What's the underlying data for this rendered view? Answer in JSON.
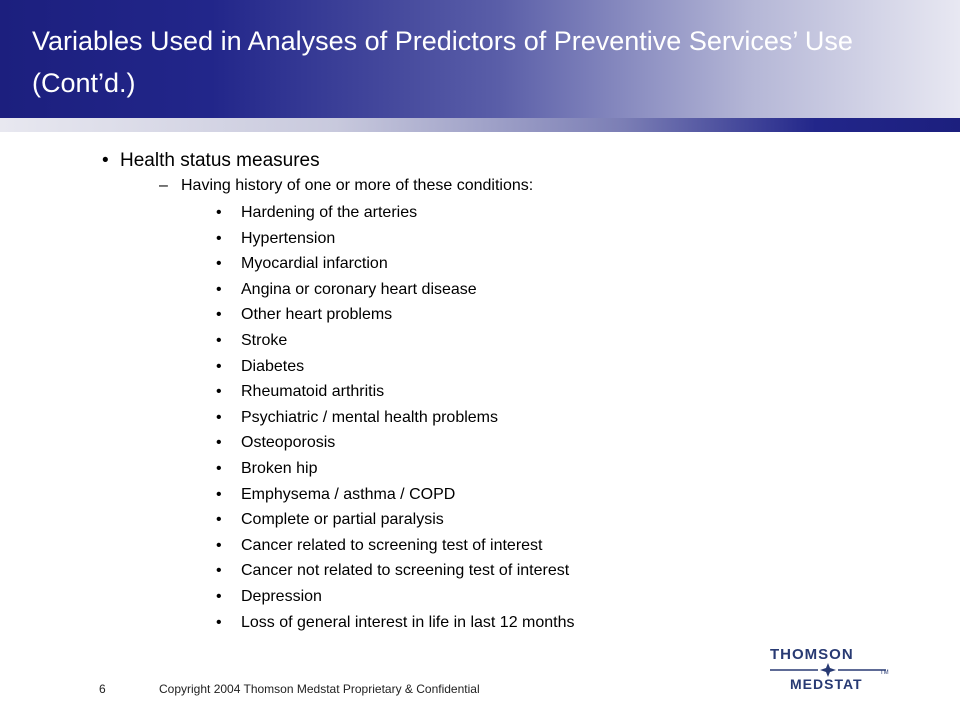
{
  "slide": {
    "title": "Variables Used in Analyses of Predictors of Preventive Services’ Use (Cont’d.)",
    "level1": "Health status measures",
    "level2": "Having history of one or more of these conditions:",
    "conditions": [
      "Hardening of the arteries",
      "Hypertension",
      "Myocardial infarction",
      "Angina or coronary heart disease",
      "Other heart problems",
      "Stroke",
      "Diabetes",
      "Rheumatoid arthritis",
      "Psychiatric / mental health problems",
      "Osteoporosis",
      "Broken hip",
      "Emphysema / asthma / COPD",
      "Complete or partial paralysis",
      "Cancer related to screening test of interest",
      "Cancer not related to screening test of interest",
      "Depression",
      "Loss of general interest in life in last 12 months"
    ]
  },
  "glyphs": {
    "bullet": "•",
    "dash": "–"
  },
  "footer": {
    "page_number": "6",
    "copyright": "Copyright 2004 Thomson Medstat  Proprietary & Confidential"
  },
  "logo": {
    "top": "THOMSON",
    "bottom": "MEDSTAT",
    "tm": "TM"
  },
  "colors": {
    "title_band": "#1c1f7e",
    "title_text": "#ffffff",
    "logo": "#283a73"
  }
}
